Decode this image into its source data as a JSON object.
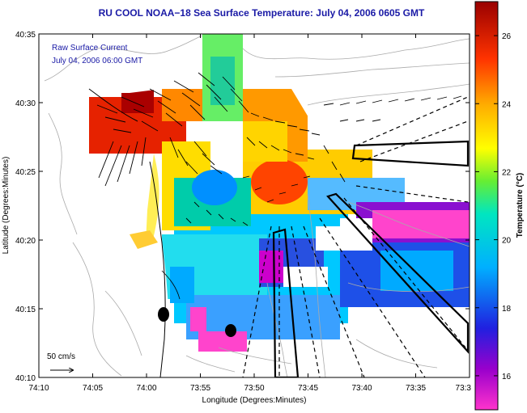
{
  "map": {
    "title": "RU COOL  NOAA−18  Sea Surface Temperature:  July 04, 2006 0605 GMT",
    "annotation_line1": "Raw Surface Current",
    "annotation_line2": "July 04, 2006 06:00 GMT",
    "scale_label": "50 cm/s",
    "ylabel": "Latitude (Degrees:Minutes)",
    "xlabel": "Longitude (Degrees:Minutes)",
    "y_ticks": [
      "40:35",
      "40:30",
      "40:25",
      "40:20",
      "40:15",
      "40:10"
    ],
    "x_ticks": [
      "74:10",
      "74:05",
      "74:00",
      "73:55",
      "73:50",
      "73:45",
      "73:40",
      "73:35",
      "73:3"
    ],
    "colorbar": {
      "label": "Temperature (°C)",
      "ticks": [
        "26",
        "24",
        "22",
        "20",
        "18",
        "16"
      ],
      "range": [
        15,
        27
      ]
    },
    "colors": {
      "title": "#1a1aa6",
      "annotation": "#1a1aa6",
      "land": "#ffffff",
      "contour": "#aaaaaa"
    }
  }
}
